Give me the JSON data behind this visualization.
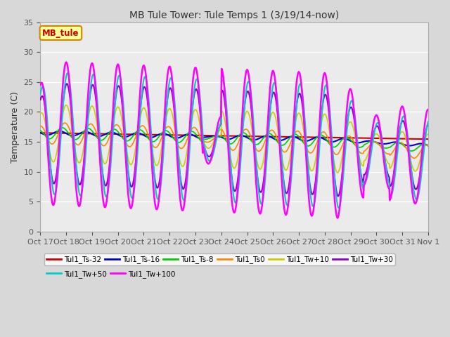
{
  "title": "MB Tule Tower: Tule Temps 1 (3/19/14-now)",
  "ylabel": "Temperature (C)",
  "xlabel": "",
  "ylim": [
    0,
    35
  ],
  "yticks": [
    0,
    5,
    10,
    15,
    20,
    25,
    30,
    35
  ],
  "xtick_labels": [
    "Oct 17",
    "Oct 18",
    "Oct 19",
    "Oct 20",
    "Oct 21",
    "Oct 22",
    "Oct 23",
    "Oct 24",
    "Oct 25",
    "Oct 26",
    "Oct 27",
    "Oct 28",
    "Oct 29",
    "Oct 30",
    "Oct 31",
    "Nov 1"
  ],
  "legend_label_box": "MB_tule",
  "legend_label_box_color": "#ffff99",
  "legend_label_box_border": "#cc8800",
  "series_order": [
    "Tul1_Ts-32",
    "Tul1_Ts-16",
    "Tul1_Ts-8",
    "Tul1_Ts0",
    "Tul1_Tw+10",
    "Tul1_Tw+30",
    "Tul1_Tw+50",
    "Tul1_Tw+100"
  ],
  "series_colors": {
    "Tul1_Ts-32": "#cc0000",
    "Tul1_Ts-16": "#0000cc",
    "Tul1_Ts-8": "#00cc00",
    "Tul1_Ts0": "#ff8800",
    "Tul1_Tw+10": "#cccc00",
    "Tul1_Tw+30": "#8800cc",
    "Tul1_Tw+50": "#00cccc",
    "Tul1_Tw+100": "#ff00ff"
  },
  "series_linewidths": {
    "Tul1_Ts-32": 1.5,
    "Tul1_Ts-16": 1.5,
    "Tul1_Ts-8": 1.2,
    "Tul1_Ts0": 1.2,
    "Tul1_Tw+10": 1.2,
    "Tul1_Tw+30": 1.5,
    "Tul1_Tw+50": 1.5,
    "Tul1_Tw+100": 1.8
  }
}
